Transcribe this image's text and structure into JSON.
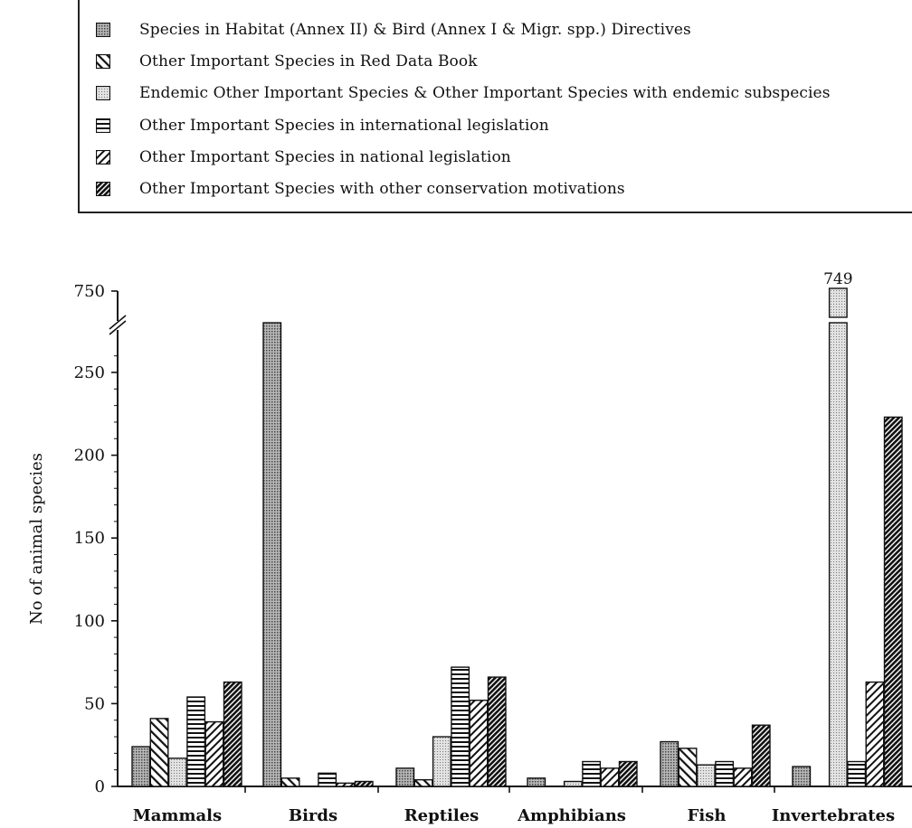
{
  "legend": {
    "items": [
      {
        "label": "Species in Habitat (Annex II) & Bird (Annex I & Migr. spp.) Directives",
        "pattern": "dots"
      },
      {
        "label": "Other Important Species in Red Data Book",
        "pattern": "diag"
      },
      {
        "label": "Endemic Other Important Species & Other Important Species with endemic subspecies",
        "pattern": "fine"
      },
      {
        "label": "Other Important Species in international legislation",
        "pattern": "horiz"
      },
      {
        "label": "Other Important Species in national legislation",
        "pattern": "antidiag"
      },
      {
        "label": "Other Important Species with other conservation motivations",
        "pattern": "dense"
      }
    ]
  },
  "chart_data": {
    "type": "bar",
    "ylabel": "No of animal species",
    "yticks": [
      "0",
      "50",
      "100",
      "150",
      "200",
      "250",
      "750"
    ],
    "ylim": [
      0,
      280
    ],
    "axis_break": true,
    "categories": [
      "Mammals",
      "Birds",
      "Reptiles",
      "Amphibians",
      "Fish",
      "Invertebrates"
    ],
    "series": [
      {
        "name": "Species in Habitat (Annex II) & Bird (Annex I & Migr. spp.) Directives",
        "values": [
          24,
          280,
          11,
          5,
          27,
          12
        ]
      },
      {
        "name": "Other Important Species in Red Data Book",
        "values": [
          41,
          5,
          4,
          0,
          23,
          0
        ]
      },
      {
        "name": "Endemic Other Important Species & Other Important Species with endemic subspecies",
        "values": [
          17,
          0,
          30,
          3,
          13,
          749
        ]
      },
      {
        "name": "Other Important Species in international legislation",
        "values": [
          54,
          8,
          72,
          15,
          15,
          15
        ]
      },
      {
        "name": "Other Important Species in national legislation",
        "values": [
          39,
          2,
          52,
          11,
          11,
          63
        ]
      },
      {
        "name": "Other Important Species with other conservation motivations",
        "values": [
          63,
          3,
          66,
          15,
          37,
          223
        ]
      }
    ],
    "data_labels": [
      {
        "category": "Invertebrates",
        "series": 2,
        "text": "749"
      }
    ],
    "legend_position": "top"
  }
}
